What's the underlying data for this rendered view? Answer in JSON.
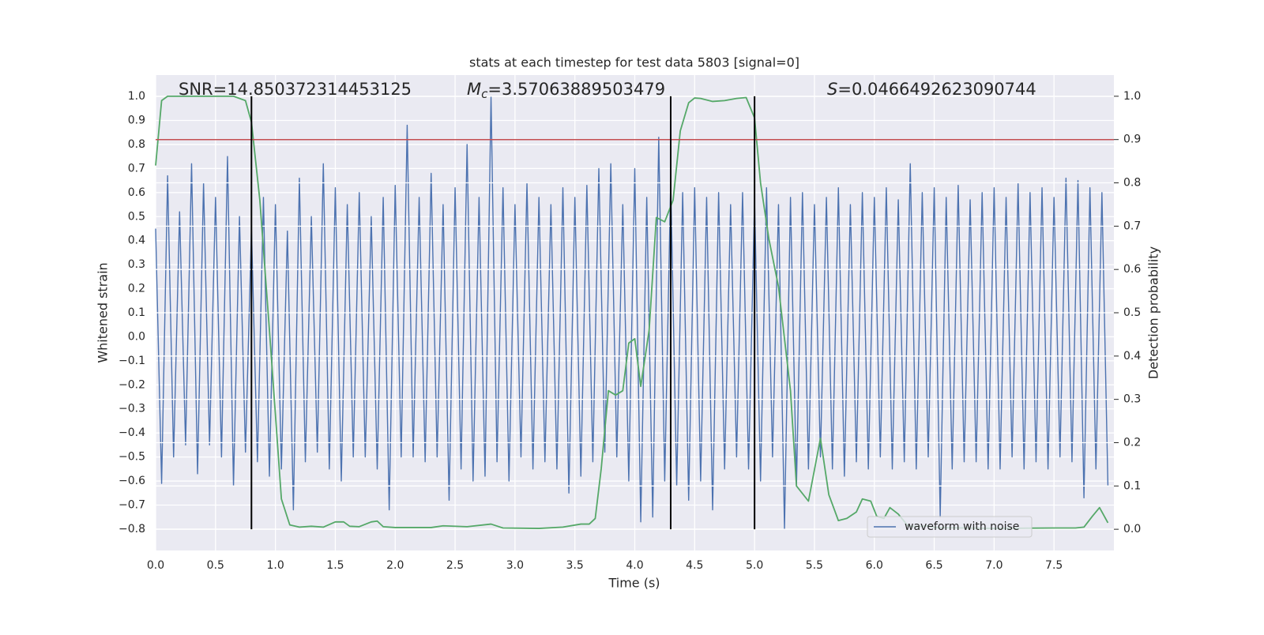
{
  "chart_data": {
    "type": "line",
    "title": "stats at each timestep for test data 5803 [signal=0]",
    "xlabel": "Time (s)",
    "ylabel": "Whitened strain",
    "y2label": "Detection probability",
    "xlim": [
      0,
      8.0
    ],
    "ylim": [
      -0.889,
      1.089
    ],
    "y2lim": [
      -0.049,
      1.049
    ],
    "xticks": [
      {
        "value": 0,
        "label": "0.0"
      },
      {
        "value": 0.5,
        "label": "0.5"
      },
      {
        "value": 1,
        "label": "1.0"
      },
      {
        "value": 1.5,
        "label": "1.5"
      },
      {
        "value": 2,
        "label": "2.0"
      },
      {
        "value": 2.5,
        "label": "2.5"
      },
      {
        "value": 3,
        "label": "3.0"
      },
      {
        "value": 3.5,
        "label": "3.5"
      },
      {
        "value": 4,
        "label": "4.0"
      },
      {
        "value": 4.5,
        "label": "4.5"
      },
      {
        "value": 5,
        "label": "5.0"
      },
      {
        "value": 5.5,
        "label": "5.5"
      },
      {
        "value": 6,
        "label": "6.0"
      },
      {
        "value": 6.5,
        "label": "6.5"
      },
      {
        "value": 7,
        "label": "7.0"
      },
      {
        "value": 7.5,
        "label": "7.5"
      }
    ],
    "yticks": [
      {
        "value": -0.8,
        "label": "−0.8"
      },
      {
        "value": -0.7,
        "label": "−0.7"
      },
      {
        "value": -0.6,
        "label": "−0.6"
      },
      {
        "value": -0.5,
        "label": "−0.5"
      },
      {
        "value": -0.4,
        "label": "−0.4"
      },
      {
        "value": -0.3,
        "label": "−0.3"
      },
      {
        "value": -0.2,
        "label": "−0.2"
      },
      {
        "value": -0.1,
        "label": "−0.1"
      },
      {
        "value": 0,
        "label": "0.0"
      },
      0.1,
      0.2,
      0.3,
      0.4,
      0.5,
      0.6,
      0.7,
      0.8,
      0.9,
      {
        "value": 1,
        "label": "1.0"
      }
    ],
    "y2ticks": [
      {
        "value": 0,
        "label": "0.0"
      },
      0.1,
      0.2,
      0.3,
      0.4,
      0.5,
      0.6,
      0.7,
      0.8,
      0.9,
      {
        "value": 1,
        "label": "1.0"
      }
    ],
    "grid": true,
    "legend": "lower right",
    "annotations": [
      {
        "text": "SNR=14.850372314453125"
      },
      {
        "symbol": "M",
        "sub": "c",
        "text": "=3.57063889503479"
      },
      {
        "symbol": "S",
        "text": "=0.0466492623090744"
      }
    ],
    "hlines": [
      {
        "value": 0.9,
        "axis": "y2",
        "color": "#c44e52"
      }
    ],
    "vlines": {
      "x": [
        0.8,
        4.3,
        5.0
      ],
      "y2range": [
        0,
        1
      ],
      "color": "#000000"
    },
    "series": [
      {
        "name": "waveform with noise",
        "color": "#4c72b0",
        "x": [
          0,
          0.05,
          0.1,
          0.15,
          0.2,
          0.25,
          0.3,
          0.35,
          0.4,
          0.45,
          0.5,
          0.55,
          0.6,
          0.65,
          0.7,
          0.75,
          0.8,
          0.85,
          0.9,
          0.95,
          1,
          1.05,
          1.1,
          1.15,
          1.2,
          1.25,
          1.3,
          1.35,
          1.4,
          1.45,
          1.5,
          1.55,
          1.6,
          1.65,
          1.7,
          1.75,
          1.8,
          1.85,
          1.9,
          1.95,
          2,
          2.05,
          2.1,
          2.15,
          2.2,
          2.25,
          2.3,
          2.35,
          2.4,
          2.45,
          2.5,
          2.55,
          2.6,
          2.65,
          2.7,
          2.75,
          2.8,
          2.85,
          2.9,
          2.95,
          3,
          3.05,
          3.1,
          3.15,
          3.2,
          3.25,
          3.3,
          3.35,
          3.4,
          3.45,
          3.5,
          3.55,
          3.6,
          3.65,
          3.7,
          3.75,
          3.8,
          3.85,
          3.9,
          3.95,
          4,
          4.05,
          4.1,
          4.15,
          4.2,
          4.25,
          4.3,
          4.35,
          4.4,
          4.45,
          4.5,
          4.55,
          4.6,
          4.65,
          4.7,
          4.75,
          4.8,
          4.85,
          4.9,
          4.95,
          5,
          5.05,
          5.1,
          5.15,
          5.2,
          5.25,
          5.3,
          5.35,
          5.4,
          5.45,
          5.5,
          5.55,
          5.6,
          5.65,
          5.7,
          5.75,
          5.8,
          5.85,
          5.9,
          5.95,
          6,
          6.05,
          6.1,
          6.15,
          6.2,
          6.25,
          6.3,
          6.35,
          6.4,
          6.45,
          6.5,
          6.55,
          6.6,
          6.65,
          6.7,
          6.75,
          6.8,
          6.85,
          6.9,
          6.95,
          7,
          7.05,
          7.1,
          7.15,
          7.2,
          7.25,
          7.3,
          7.35,
          7.4,
          7.45,
          7.5,
          7.55,
          7.6,
          7.65,
          7.7,
          7.75,
          7.8,
          7.85,
          7.9,
          7.95
        ],
        "values": [
          0.45,
          -0.61,
          0.67,
          -0.5,
          0.52,
          -0.45,
          0.72,
          -0.57,
          0.64,
          -0.45,
          0.58,
          -0.5,
          0.75,
          -0.62,
          0.5,
          -0.48,
          0.45,
          -0.52,
          0.58,
          -0.58,
          0.55,
          -0.55,
          0.44,
          -0.72,
          0.66,
          -0.52,
          0.5,
          -0.48,
          0.72,
          -0.55,
          0.62,
          -0.6,
          0.55,
          -0.5,
          0.6,
          -0.5,
          0.5,
          -0.55,
          0.58,
          -0.72,
          0.63,
          -0.5,
          0.88,
          -0.5,
          0.58,
          -0.52,
          0.68,
          -0.5,
          0.55,
          -0.68,
          0.62,
          -0.55,
          0.8,
          -0.6,
          0.58,
          -0.58,
          1.0,
          -0.52,
          0.62,
          -0.6,
          0.55,
          -0.5,
          0.64,
          -0.55,
          0.58,
          -0.52,
          0.55,
          -0.55,
          0.62,
          -0.65,
          0.58,
          -0.58,
          0.63,
          -0.52,
          0.7,
          -0.48,
          0.72,
          -0.5,
          0.55,
          -0.6,
          0.7,
          -0.77,
          0.58,
          -0.75,
          0.83,
          -0.6,
          0.65,
          -0.62,
          0.6,
          -0.68,
          0.62,
          -0.6,
          0.58,
          -0.72,
          0.6,
          -0.55,
          0.55,
          -0.5,
          0.6,
          -0.55,
          0.57,
          -0.6,
          0.62,
          -0.5,
          0.55,
          -0.8,
          0.58,
          -0.62,
          0.6,
          -0.55,
          0.55,
          -0.5,
          0.58,
          -0.55,
          0.62,
          -0.58,
          0.55,
          -0.52,
          0.6,
          -0.55,
          0.58,
          -0.5,
          0.62,
          -0.55,
          0.57,
          -0.52,
          0.72,
          -0.55,
          0.6,
          -0.5,
          0.62,
          -0.75,
          0.58,
          -0.55,
          0.63,
          -0.52,
          0.57,
          -0.52,
          0.6,
          -0.55,
          0.62,
          -0.55,
          0.58,
          -0.5,
          0.64,
          -0.55,
          0.6,
          -0.52,
          0.62,
          -0.55,
          0.58,
          -0.5,
          0.66,
          -0.52,
          0.65,
          -0.67,
          0.62,
          -0.55,
          0.6,
          -0.62
        ]
      },
      {
        "color": "#55a868",
        "axis": "y2",
        "x": [
          0,
          0.05,
          0.1,
          0.3,
          0.5,
          0.65,
          0.75,
          0.8,
          0.87,
          0.95,
          1.05,
          1.12,
          1.2,
          1.3,
          1.4,
          1.5,
          1.57,
          1.62,
          1.7,
          1.8,
          1.85,
          1.9,
          2.0,
          2.3,
          2.4,
          2.6,
          2.8,
          2.9,
          3.2,
          3.4,
          3.55,
          3.62,
          3.67,
          3.72,
          3.78,
          3.84,
          3.9,
          3.95,
          4.0,
          4.05,
          4.12,
          4.18,
          4.25,
          4.32,
          4.38,
          4.45,
          4.5,
          4.55,
          4.65,
          4.75,
          4.85,
          4.93,
          5.0,
          5.05,
          5.12,
          5.2,
          5.3,
          5.35,
          5.45,
          5.55,
          5.62,
          5.7,
          5.77,
          5.85,
          5.9,
          5.97,
          6.02,
          6.08,
          6.13,
          6.2,
          6.28,
          6.35,
          6.45,
          6.5,
          7.0,
          7.5,
          7.68,
          7.75,
          7.82,
          7.88,
          7.95
        ],
        "values": [
          0.84,
          0.99,
          1.0,
          1.0,
          1.0,
          1.0,
          0.99,
          0.94,
          0.76,
          0.46,
          0.07,
          0.01,
          0.005,
          0.007,
          0.005,
          0.017,
          0.017,
          0.007,
          0.006,
          0.017,
          0.019,
          0.006,
          0.004,
          0.004,
          0.008,
          0.006,
          0.012,
          0.003,
          0.002,
          0.005,
          0.012,
          0.012,
          0.025,
          0.14,
          0.32,
          0.31,
          0.32,
          0.43,
          0.44,
          0.33,
          0.46,
          0.72,
          0.71,
          0.76,
          0.92,
          0.985,
          0.996,
          0.995,
          0.988,
          0.99,
          0.995,
          0.997,
          0.95,
          0.8,
          0.67,
          0.56,
          0.32,
          0.1,
          0.065,
          0.21,
          0.08,
          0.02,
          0.025,
          0.04,
          0.07,
          0.065,
          0.03,
          0.025,
          0.05,
          0.035,
          0.008,
          0.006,
          0.008,
          0.004,
          0.002,
          0.003,
          0.003,
          0.005,
          0.03,
          0.05,
          0.015
        ]
      }
    ]
  }
}
